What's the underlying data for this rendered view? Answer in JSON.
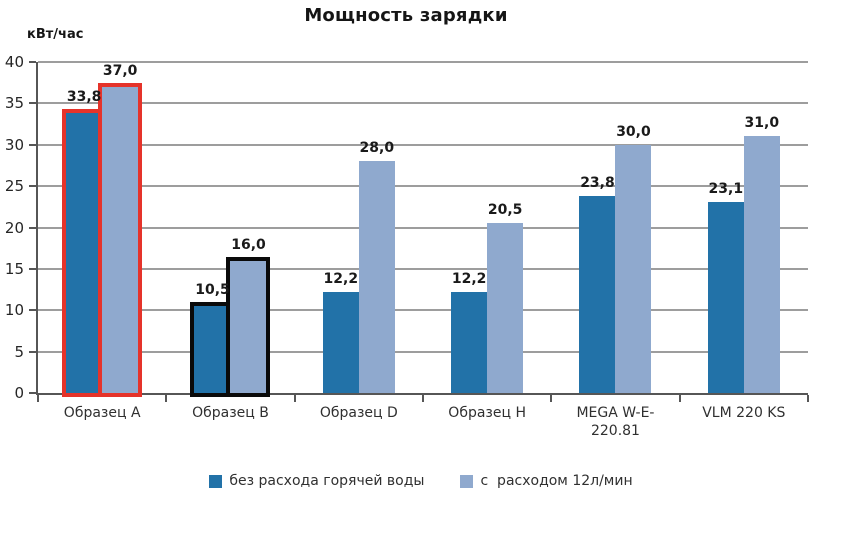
{
  "chart_data": {
    "type": "bar",
    "title": "Мощность зарядки",
    "y_unit": "кВт/час",
    "ylim": [
      0,
      40
    ],
    "ytick_step": 5,
    "grid": "horizontal",
    "legend_position": "bottom",
    "decimal_separator": ",",
    "categories": [
      "Образец A",
      "Образец B",
      "Образец D",
      "Образец H",
      "MEGA W-E-220.81",
      "VLM 220 KS"
    ],
    "series": [
      {
        "name": "без расхода горячей воды",
        "color": "#2272a8",
        "values": [
          33.8,
          10.5,
          12.2,
          12.2,
          23.8,
          23.1
        ]
      },
      {
        "name": "с  расходом 12л/мин",
        "color": "#8fa9ce",
        "values": [
          37.0,
          16.0,
          28.0,
          20.5,
          30.0,
          31.0
        ]
      }
    ],
    "data_labels": [
      [
        "33,8",
        "10,5",
        "12,2",
        "12,2",
        "23,8",
        "23,1"
      ],
      [
        "37,0",
        "16,0",
        "28,0",
        "20,5",
        "30,0",
        "31,0"
      ]
    ],
    "highlights": [
      {
        "category_index": 0,
        "outline_color": "#e5332a"
      },
      {
        "category_index": 1,
        "outline_color": "#0a0a0a"
      }
    ],
    "colors": {
      "gridline": "#9d9d9d",
      "axis": "#565656",
      "label_text": "#1a1a1a"
    }
  }
}
